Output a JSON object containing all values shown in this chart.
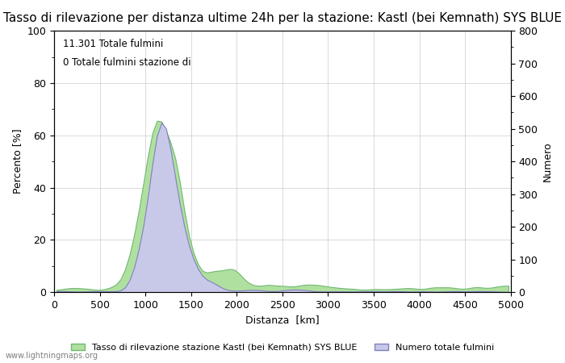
{
  "title": "Tasso di rilevazione per distanza ultime 24h per la stazione: Kastl (bei Kemnath) SYS BLUE",
  "xlabel": "Distanza  [km]",
  "ylabel_left": "Percento [%]",
  "ylabel_right": "Numero",
  "annotation_line1": "11.301 Totale fulmini",
  "annotation_line2": "0 Totale fulmini stazione di",
  "watermark": "www.lightningmaps.org",
  "legend_green": "Tasso di rilevazione stazione Kastl (bei Kemnath) SYS BLUE",
  "legend_blue": "Numero totale fulmini",
  "ylim_left": [
    0,
    100
  ],
  "ylim_right": [
    0,
    800
  ],
  "xlim": [
    0,
    5000
  ],
  "yticks_left": [
    0,
    20,
    40,
    60,
    80,
    100
  ],
  "yticks_right": [
    0,
    100,
    200,
    300,
    400,
    500,
    600,
    700,
    800
  ],
  "xticks": [
    0,
    500,
    1000,
    1500,
    2000,
    2500,
    3000,
    3500,
    4000,
    4500,
    5000
  ],
  "color_green": "#b0e0a0",
  "color_blue": "#c8c8e8",
  "color_line_green": "#70b870",
  "color_line_blue": "#8080c0",
  "background_color": "#ffffff",
  "grid_color": "#cccccc",
  "title_fontsize": 11,
  "label_fontsize": 9,
  "tick_fontsize": 9
}
